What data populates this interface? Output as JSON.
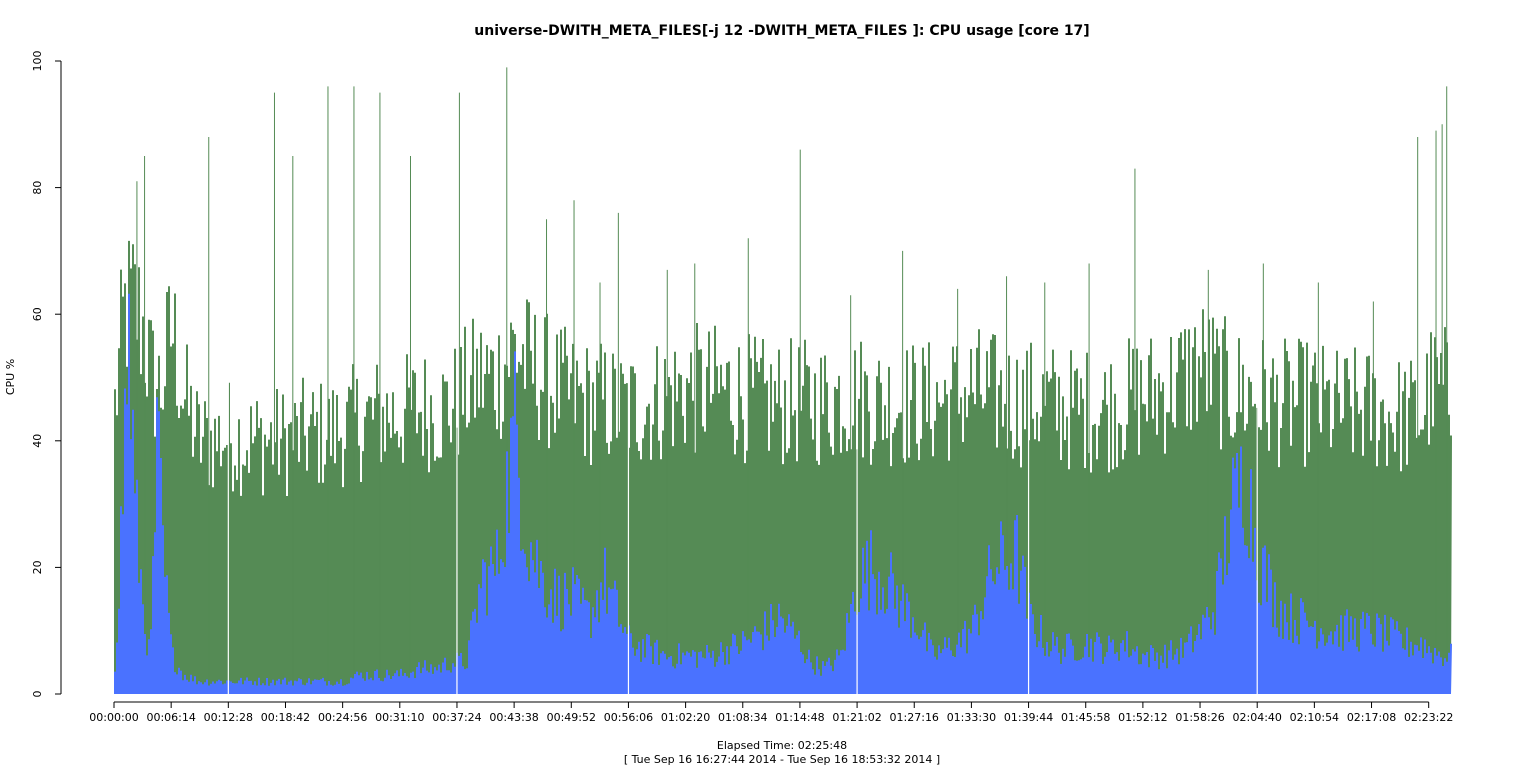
{
  "chart_data": {
    "type": "area",
    "title": "universe-DWITH_META_FILES[-j 12 -DWITH_META_FILES ]: CPU usage [core 17]",
    "xlabel": "Elapsed Time: 02:25:48",
    "xsublabel": "[ Tue Sep 16 16:27:44 2014 - Tue Sep 16 18:53:32 2014 ]",
    "ylabel": "CPU %",
    "ylim": [
      0,
      100
    ],
    "yticks": [
      0,
      20,
      40,
      60,
      80,
      100
    ],
    "x_tick_labels": [
      "00:00:00",
      "00:06:14",
      "00:12:28",
      "00:18:42",
      "00:24:56",
      "00:31:10",
      "00:37:24",
      "00:43:38",
      "00:49:52",
      "00:56:06",
      "01:02:20",
      "01:08:34",
      "01:14:48",
      "01:21:02",
      "01:27:16",
      "01:33:30",
      "01:39:44",
      "01:45:58",
      "01:52:12",
      "01:58:26",
      "02:04:40",
      "02:10:54",
      "02:17:08",
      "02:23:22"
    ],
    "x_tick_seconds": [
      0,
      374,
      748,
      1122,
      1496,
      1870,
      2244,
      2618,
      2992,
      3366,
      3740,
      4114,
      4488,
      4862,
      5236,
      5610,
      5984,
      6358,
      6732,
      7106,
      7480,
      7854,
      8228,
      8602
    ],
    "xlim_seconds": [
      0,
      8748
    ],
    "grid": false,
    "legend": "none",
    "series": [
      {
        "color": "#558b55",
        "x_seconds": [
          0,
          60,
          120,
          180,
          240,
          300,
          374,
          450,
          550,
          650,
          748,
          850,
          950,
          1050,
          1122,
          1250,
          1400,
          1496,
          1600,
          1750,
          1870,
          2000,
          2150,
          2244,
          2300,
          2400,
          2500,
          2618,
          2700,
          2800,
          2900,
          2992,
          3100,
          3200,
          3300,
          3366,
          3500,
          3600,
          3740,
          3900,
          4000,
          4114,
          4250,
          4350,
          4488,
          4550,
          4650,
          4750,
          4862,
          5000,
          5100,
          5236,
          5350,
          5500,
          5610,
          5750,
          5900,
          5984,
          6100,
          6200,
          6358,
          6500,
          6600,
          6732,
          6850,
          7000,
          7106,
          7200,
          7300,
          7480,
          7600,
          7700,
          7854,
          7950,
          8050,
          8228,
          8350,
          8450,
          8550,
          8602,
          8700,
          8748
        ],
        "values": [
          45,
          60,
          62,
          58,
          50,
          48,
          58,
          47,
          40,
          40,
          41,
          40,
          40,
          40,
          40,
          41,
          41,
          42,
          43,
          44,
          44,
          45,
          45,
          46,
          48,
          50,
          50,
          55,
          52,
          50,
          48,
          47,
          46,
          46,
          45,
          45,
          46,
          47,
          48,
          48,
          48,
          47,
          46,
          46,
          46,
          46,
          46,
          47,
          47,
          46,
          46,
          46,
          46,
          47,
          48,
          47,
          46,
          46,
          46,
          45,
          45,
          45,
          46,
          47,
          48,
          50,
          52,
          50,
          48,
          47,
          46,
          46,
          46,
          45,
          45,
          45,
          44,
          44,
          44,
          48,
          48,
          46
        ],
        "spikes": [
          [
            150,
            81
          ],
          [
            200,
            85
          ],
          [
            620,
            88
          ],
          [
            1050,
            95
          ],
          [
            1170,
            85
          ],
          [
            1400,
            96
          ],
          [
            1570,
            96
          ],
          [
            1740,
            95
          ],
          [
            1940,
            85
          ],
          [
            2260,
            95
          ],
          [
            2570,
            99
          ],
          [
            2830,
            75
          ],
          [
            3010,
            78
          ],
          [
            3180,
            65
          ],
          [
            3300,
            76
          ],
          [
            3620,
            67
          ],
          [
            3800,
            68
          ],
          [
            4150,
            72
          ],
          [
            4490,
            86
          ],
          [
            4820,
            63
          ],
          [
            5160,
            70
          ],
          [
            5520,
            64
          ],
          [
            5840,
            66
          ],
          [
            6090,
            65
          ],
          [
            6380,
            68
          ],
          [
            6680,
            83
          ],
          [
            7160,
            67
          ],
          [
            7520,
            68
          ],
          [
            7880,
            65
          ],
          [
            8240,
            62
          ],
          [
            8530,
            88
          ],
          [
            8650,
            89
          ],
          [
            8690,
            90
          ],
          [
            8720,
            96
          ]
        ]
      },
      {
        "color": "#4a72ff",
        "x_seconds": [
          0,
          40,
          90,
          130,
          180,
          230,
          280,
          320,
          374,
          450,
          550,
          650,
          748,
          850,
          950,
          1050,
          1122,
          1250,
          1400,
          1496,
          1600,
          1750,
          1870,
          2000,
          2100,
          2200,
          2244,
          2300,
          2400,
          2500,
          2618,
          2700,
          2800,
          2900,
          2992,
          3100,
          3200,
          3300,
          3366,
          3500,
          3600,
          3740,
          3900,
          4000,
          4114,
          4250,
          4350,
          4488,
          4550,
          4650,
          4750,
          4862,
          4950,
          5050,
          5150,
          5236,
          5350,
          5500,
          5610,
          5750,
          5900,
          5984,
          6100,
          6200,
          6358,
          6500,
          6600,
          6732,
          6850,
          7000,
          7106,
          7200,
          7300,
          7400,
          7480,
          7600,
          7700,
          7854,
          7950,
          8050,
          8228,
          8350,
          8450,
          8550,
          8602,
          8700,
          8748
        ],
        "values": [
          5,
          25,
          58,
          30,
          15,
          5,
          40,
          20,
          6,
          3,
          2,
          2,
          2,
          2,
          2,
          2,
          2,
          2,
          2,
          2,
          3,
          3,
          3,
          4,
          4,
          5,
          5,
          5,
          18,
          20,
          42,
          25,
          18,
          15,
          15,
          12,
          18,
          12,
          8,
          7,
          6,
          6,
          6,
          7,
          8,
          10,
          12,
          8,
          5,
          4,
          6,
          18,
          20,
          18,
          14,
          12,
          6,
          8,
          10,
          20,
          22,
          12,
          8,
          7,
          8,
          7,
          8,
          6,
          6,
          7,
          10,
          14,
          28,
          35,
          22,
          14,
          12,
          11,
          10,
          10,
          10,
          9,
          8,
          8,
          7,
          6,
          6
        ]
      }
    ],
    "gaps_seconds": [
      748,
      2244,
      3366,
      4862,
      5984,
      7480
    ]
  }
}
